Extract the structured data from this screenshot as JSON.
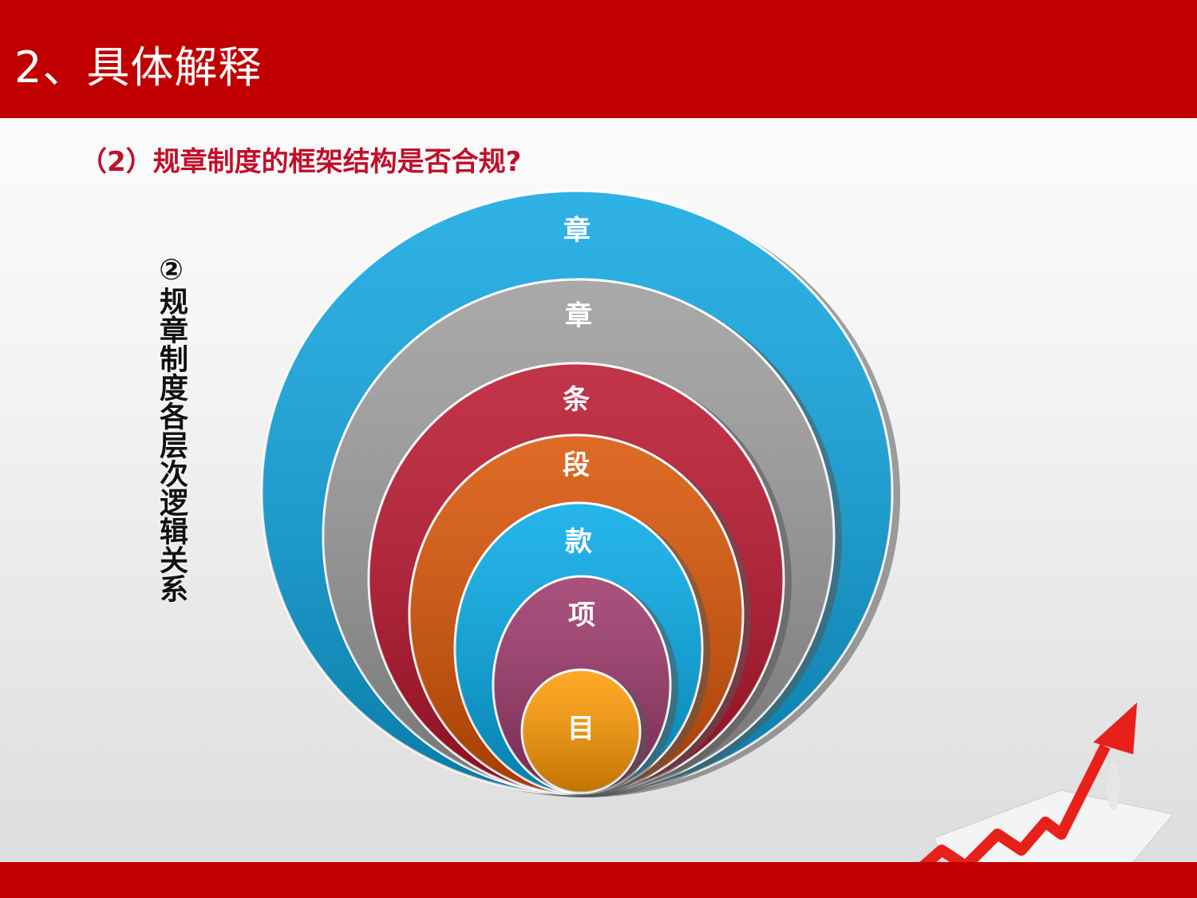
{
  "header": {
    "title": "2、具体解释"
  },
  "subtitle": "（2）规章制度的框架结构是否合规?",
  "side_label": "②规章制度各层次逻辑关系",
  "diagram": {
    "type": "nested-circles",
    "layers": [
      {
        "label": "章",
        "color": "#0aa4e0"
      },
      {
        "label": "章",
        "color": "#9a9a9a"
      },
      {
        "label": "条",
        "color": "#b8102a"
      },
      {
        "label": "段",
        "color": "#d85000"
      },
      {
        "label": "款",
        "color": "#00a8e6"
      },
      {
        "label": "项",
        "color": "#993366"
      },
      {
        "label": "目",
        "color": "#ff9900"
      }
    ]
  },
  "colors": {
    "brand": "#c00000",
    "subtitle": "#c0102a"
  }
}
